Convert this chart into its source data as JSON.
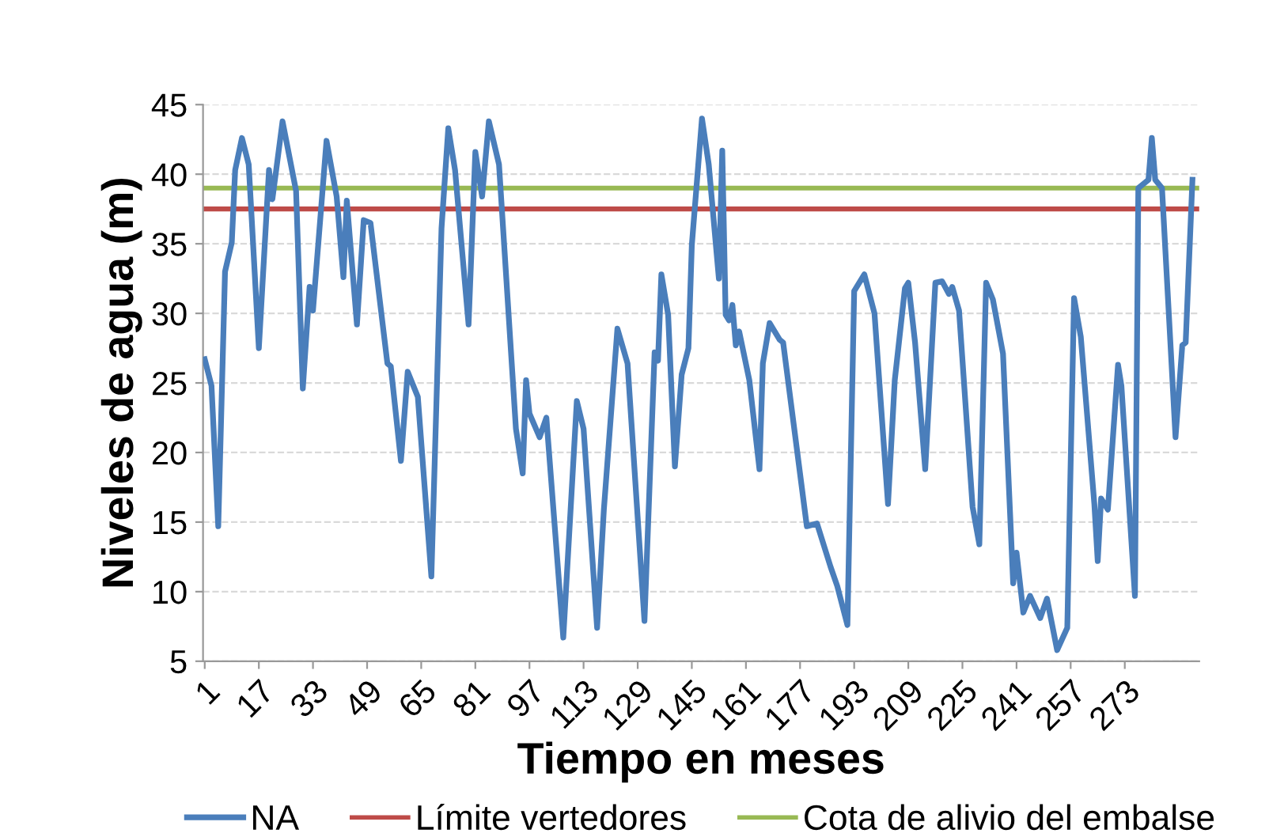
{
  "chart_data": {
    "type": "line",
    "xlabel": "Tiempo en meses",
    "ylabel": "Niveles de agua (m)",
    "xlim": [
      0.5,
      295
    ],
    "xticks": [
      1,
      17,
      33,
      49,
      65,
      81,
      97,
      113,
      129,
      145,
      161,
      177,
      193,
      209,
      225,
      241,
      257,
      273
    ],
    "ylim": [
      5,
      45
    ],
    "yticks": [
      5,
      10,
      15,
      20,
      25,
      30,
      35,
      40,
      45
    ],
    "grid": "y",
    "legend": "bottom",
    "marker": "none",
    "line_style": "solid",
    "series": [
      {
        "name": "NA",
        "color": "#4a7ebb",
        "x": [
          1,
          3,
          5,
          7,
          9,
          10,
          12,
          14,
          17,
          20,
          21,
          24,
          28,
          30,
          32,
          33,
          37,
          40,
          42,
          43,
          46,
          48,
          50,
          55,
          56,
          59,
          61,
          64,
          68,
          71,
          73,
          75,
          79,
          81,
          83,
          85,
          88,
          93,
          95,
          96,
          97,
          100,
          102,
          107,
          111,
          113,
          117,
          119,
          123,
          126,
          131,
          134,
          135,
          136,
          138,
          140,
          142,
          144,
          145,
          148,
          150,
          153,
          154,
          155,
          156,
          157,
          158,
          159,
          162,
          165,
          166,
          168,
          171,
          172,
          179,
          182,
          186,
          188,
          191,
          193,
          196,
          199,
          203,
          205,
          208,
          209,
          211,
          214,
          217,
          219,
          221,
          222,
          224,
          228,
          230,
          232,
          234,
          237,
          240,
          241,
          243,
          245,
          248,
          250,
          253,
          256,
          258,
          260,
          264,
          265,
          266,
          268,
          271,
          272,
          276,
          277,
          280,
          281,
          282,
          284,
          288,
          290,
          291,
          293
        ],
        "values": [
          26.7,
          24.8,
          14.7,
          33,
          35.1,
          40.3,
          42.6,
          40.7,
          27.5,
          40.3,
          38.2,
          43.8,
          38.8,
          24.6,
          31.9,
          30.2,
          42.4,
          38.4,
          32.6,
          38.1,
          29.2,
          36.7,
          36.5,
          26.4,
          26.2,
          19.4,
          25.8,
          24,
          11.1,
          36.1,
          43.3,
          40.3,
          29.2,
          41.6,
          38.4,
          43.8,
          40.7,
          21.7,
          18.5,
          25.2,
          22.8,
          21.1,
          22.5,
          6.7,
          23.7,
          21.7,
          7.4,
          15.9,
          28.9,
          26.4,
          7.9,
          27.2,
          26.6,
          32.8,
          29.9,
          19,
          25.6,
          27.5,
          34.9,
          44,
          40.7,
          32.5,
          41.7,
          29.9,
          29.5,
          30.6,
          27.7,
          28.7,
          25.2,
          18.8,
          26.4,
          29.3,
          28.1,
          27.9,
          14.7,
          14.9,
          11.8,
          10.4,
          7.6,
          31.6,
          32.8,
          30,
          16.3,
          25.2,
          31.8,
          32.2,
          27.9,
          18.8,
          32.2,
          32.3,
          31.4,
          31.9,
          30.2,
          16.1,
          13.4,
          32.2,
          31,
          27.1,
          10.6,
          12.8,
          8.5,
          9.7,
          8.1,
          9.5,
          5.8,
          7.4,
          31.1,
          28.3,
          16.3,
          12.2,
          16.7,
          15.9,
          26.3,
          24.8,
          9.7,
          39,
          39.6,
          42.6,
          39.6,
          39,
          21.1,
          27.7,
          27.9,
          39.6
        ]
      }
    ],
    "ref_lines": [
      {
        "axis": "y",
        "value": 37.5,
        "label": "Límite vertedores",
        "color": "#be4b48"
      },
      {
        "axis": "y",
        "value": 39.0,
        "label": "Cota de alivio del embalse",
        "color": "#98b954"
      }
    ]
  }
}
